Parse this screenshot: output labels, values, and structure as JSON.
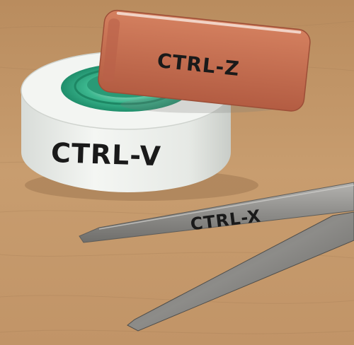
{
  "labels": {
    "eraser": "CTRL-Z",
    "tape": "CTRL-V",
    "scissors": "CTRL-X"
  },
  "colors": {
    "table": "#c49a6c",
    "table_dark": "#a87d52",
    "eraser": "#c96e52",
    "eraser_top": "#d98a6c",
    "tape_body": "#eef0ee",
    "tape_core": "#2fae86",
    "blade": "#9a9a98",
    "ink": "#1a1a1a"
  },
  "objects": {
    "eraser": "eraser",
    "tape": "tape-roll",
    "scissors": "scissors-blades"
  }
}
